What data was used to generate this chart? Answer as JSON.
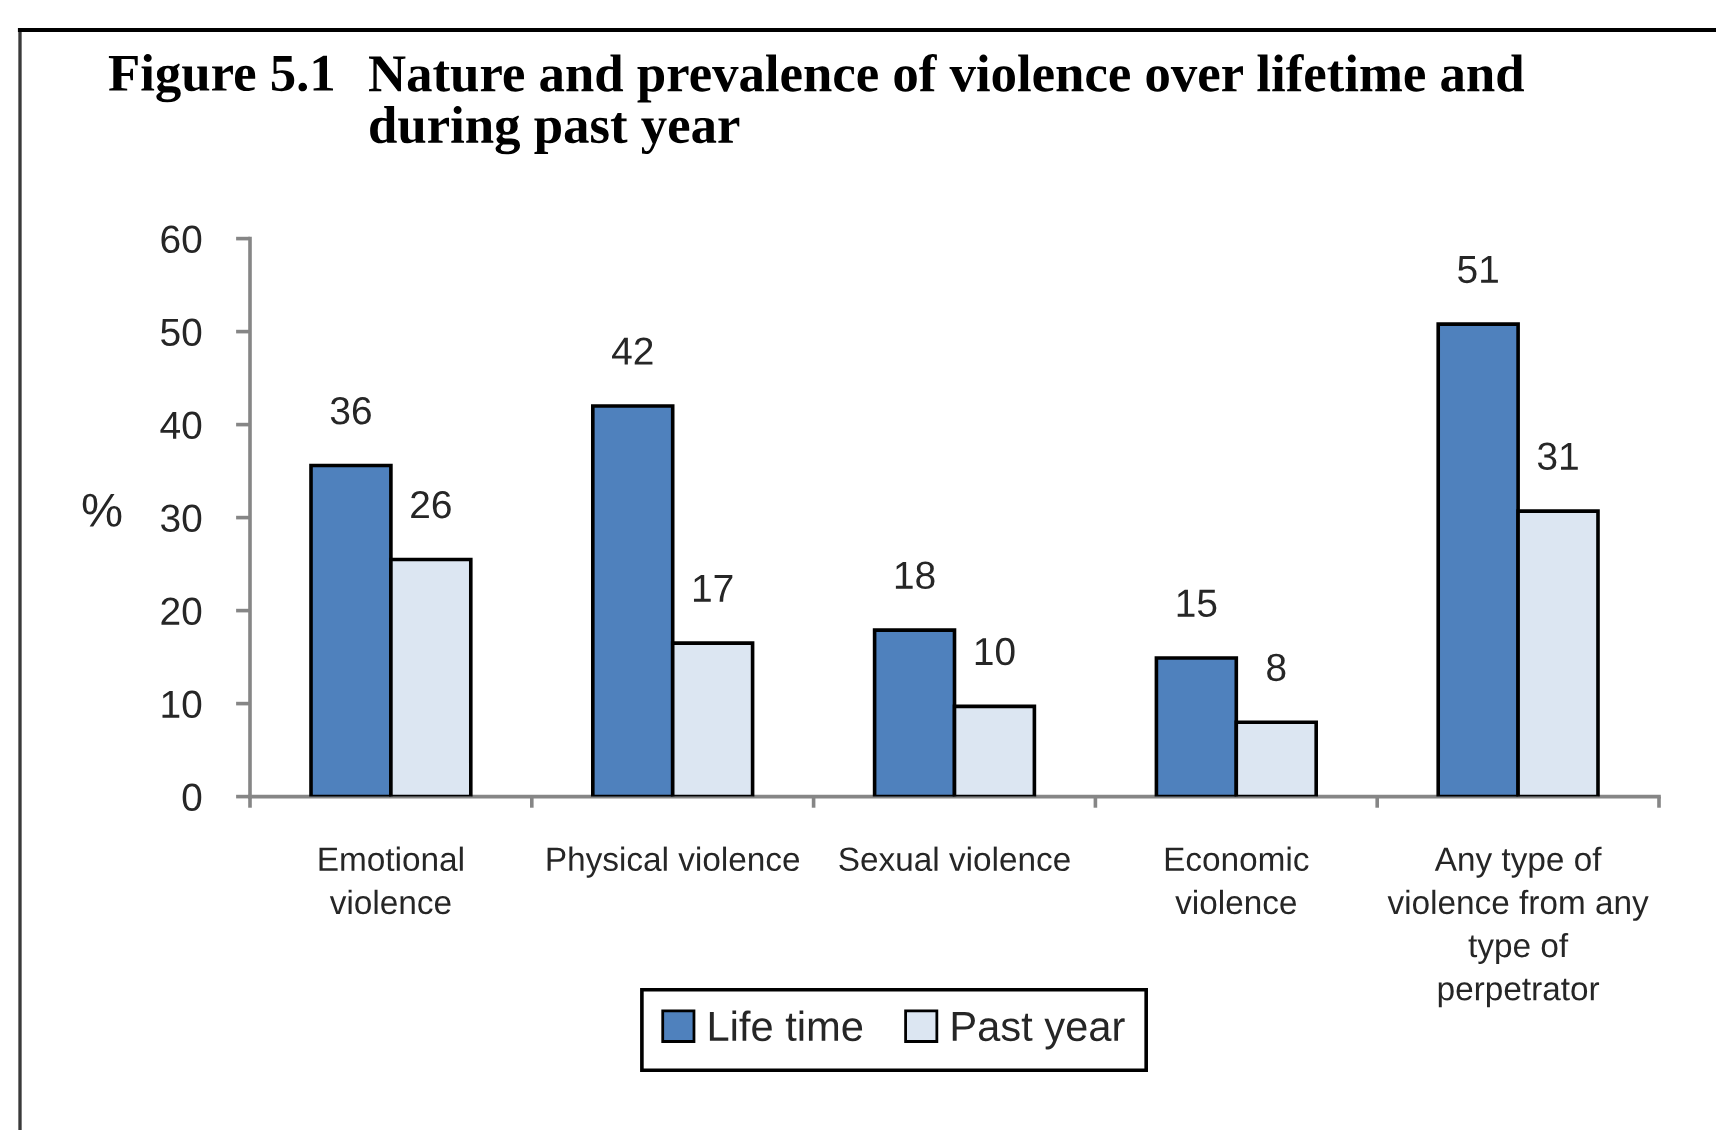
{
  "chart_data": {
    "type": "bar",
    "title": "Figure 5.1 Nature and prevalence of violence over lifetime and during past year",
    "ylabel": "%",
    "categories": [
      "Emotional violence",
      "Physical violence",
      "Sexual violence",
      "Economic violence",
      "Any type of violence from any type of perpetrator"
    ],
    "series": [
      {
        "name": "Life time",
        "color": "#4f81bd",
        "values": [
          35.6,
          42.0,
          17.9,
          14.9,
          50.8
        ],
        "value_labels": [
          "36",
          "42",
          "18",
          "15",
          "51"
        ]
      },
      {
        "name": "Past year",
        "color": "#dce6f2",
        "values": [
          25.5,
          16.5,
          9.7,
          8.0,
          30.7
        ],
        "value_labels": [
          "26",
          "17",
          "10",
          "8",
          "31"
        ]
      }
    ],
    "ylim": [
      0,
      60
    ],
    "yticks": [
      0,
      10,
      20,
      30,
      40,
      50,
      60
    ],
    "legend": "bottom"
  }
}
